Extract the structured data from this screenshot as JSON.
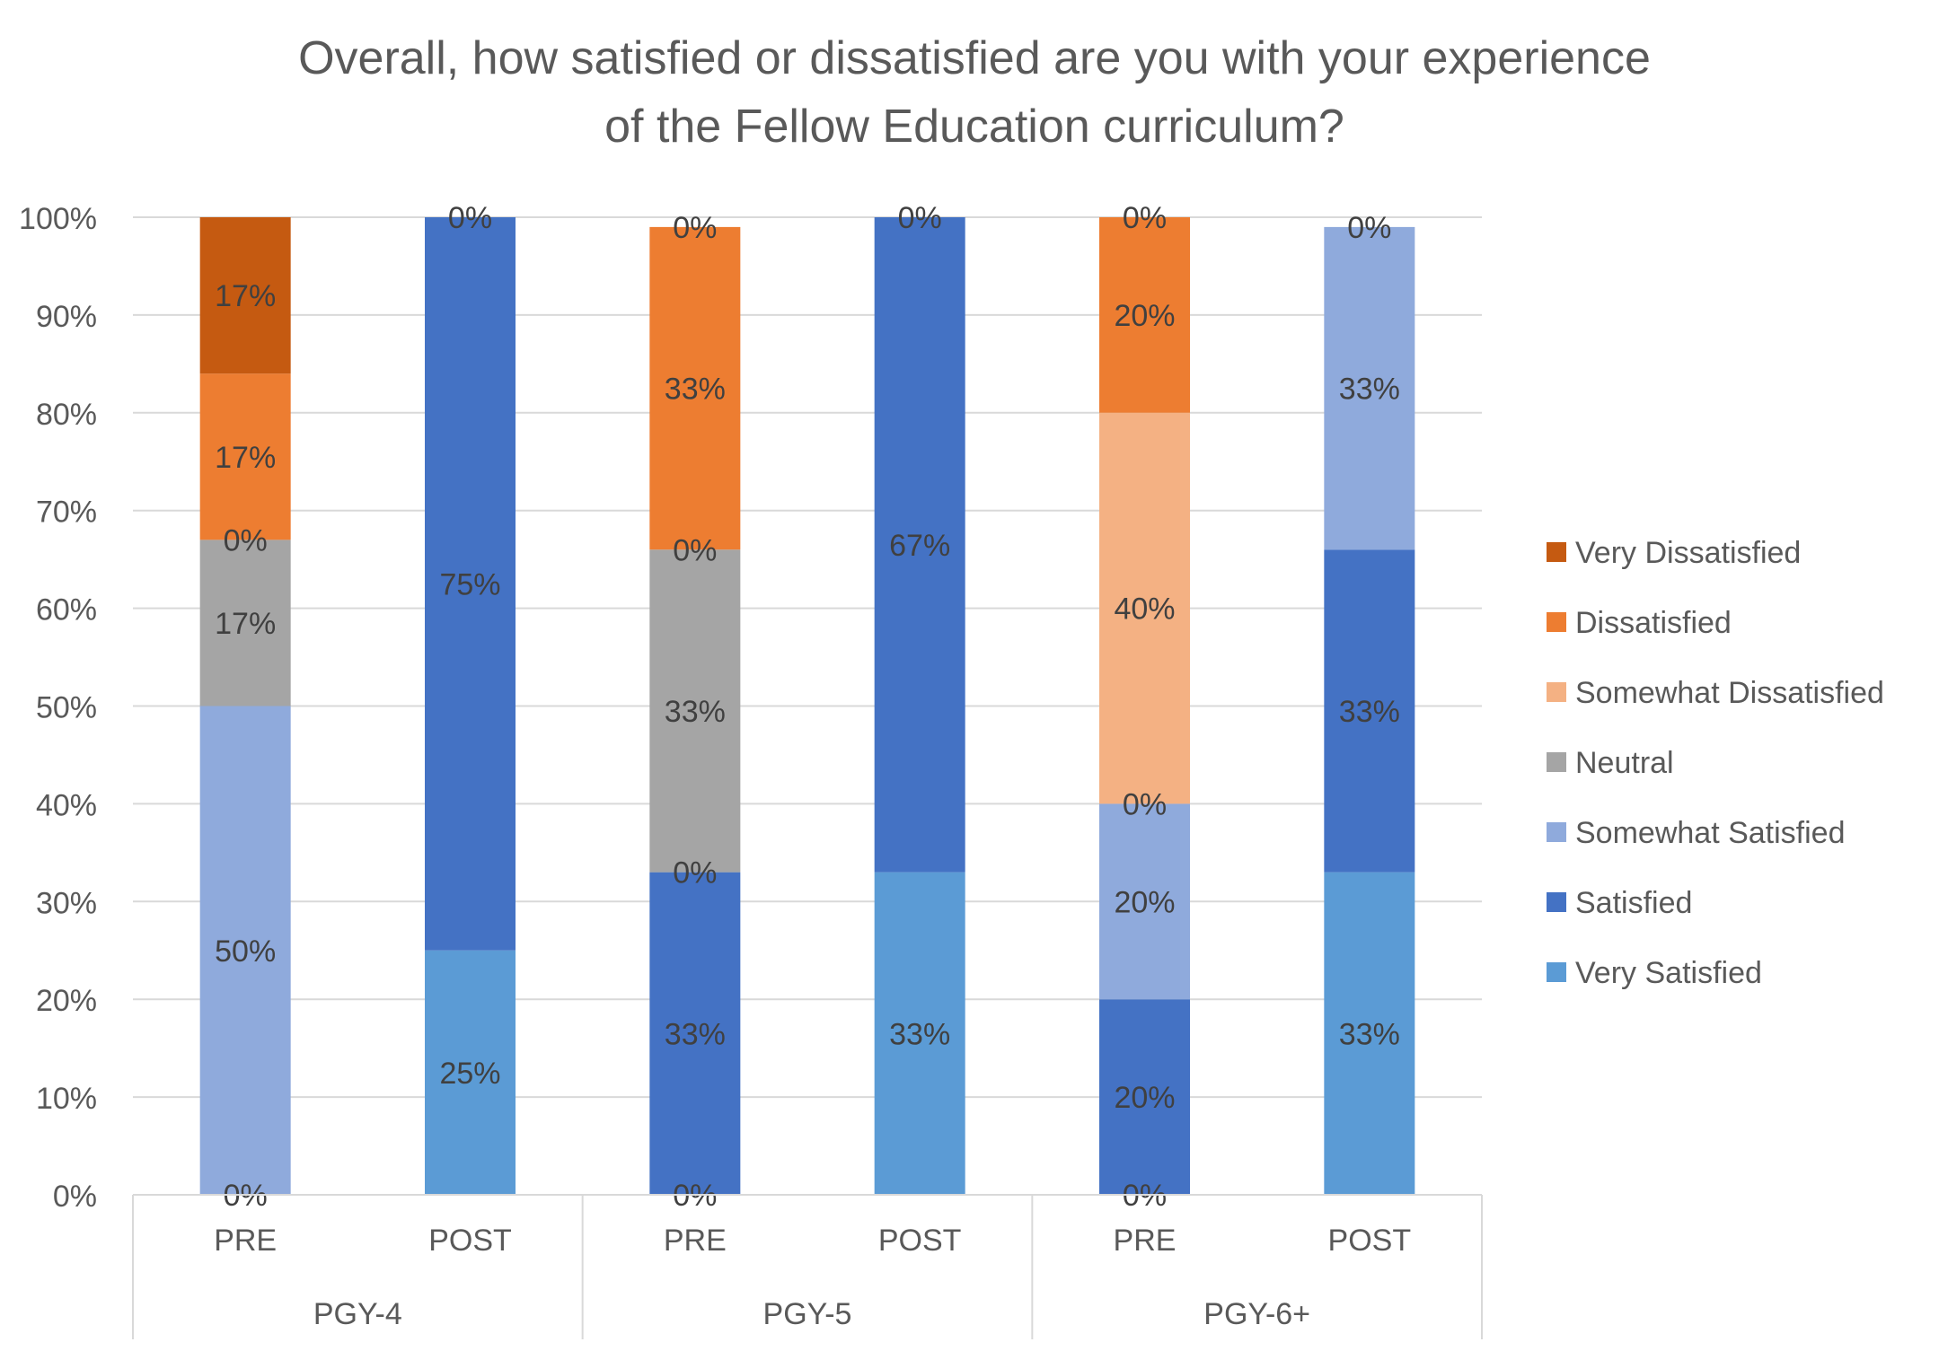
{
  "chart_data": {
    "type": "bar",
    "stacked": true,
    "percent": true,
    "title_lines": [
      "Overall, how satisfied or dissatisfied are you with your experience",
      "of the Fellow Education curriculum?"
    ],
    "groups": [
      "PGY-4",
      "PGY-5",
      "PGY-6+"
    ],
    "categories": [
      "PRE",
      "POST",
      "PRE",
      "POST",
      "PRE",
      "POST"
    ],
    "y_ticks": [
      "0%",
      "10%",
      "20%",
      "30%",
      "40%",
      "50%",
      "60%",
      "70%",
      "80%",
      "90%",
      "100%"
    ],
    "ylim": [
      0,
      100
    ],
    "grid": true,
    "legend_position": "right",
    "series": [
      {
        "name": "Very Satisfied",
        "color": "#5B9BD5",
        "values": [
          0,
          25,
          0,
          33,
          0,
          33
        ],
        "labels": [
          "0%",
          "25%",
          "0%",
          "33%",
          "0%",
          "33%"
        ]
      },
      {
        "name": "Satisfied",
        "color": "#4472C4",
        "values": [
          0,
          75,
          33,
          67,
          20,
          33
        ],
        "labels": [
          "",
          "75%",
          "33%",
          "67%",
          "20%",
          "33%"
        ]
      },
      {
        "name": "Somewhat Satisfied",
        "color": "#8FAADC",
        "values": [
          50,
          0,
          0,
          0,
          20,
          33
        ],
        "labels": [
          "50%",
          "",
          "0%",
          "",
          "20%",
          "33%"
        ]
      },
      {
        "name": "Neutral",
        "color": "#A5A5A5",
        "values": [
          17,
          0,
          33,
          0,
          0,
          0
        ],
        "labels": [
          "17%",
          "",
          "33%",
          "",
          "0%",
          ""
        ]
      },
      {
        "name": "Somewhat Dissatisfied",
        "color": "#F4B183",
        "values": [
          0,
          0,
          0,
          0,
          40,
          0
        ],
        "labels": [
          "0%",
          "",
          "0%",
          "",
          "40%",
          ""
        ]
      },
      {
        "name": "Dissatisfied",
        "color": "#ED7D31",
        "values": [
          17,
          0,
          33,
          0,
          20,
          0
        ],
        "labels": [
          "17%",
          "",
          "33%",
          "",
          "20%",
          ""
        ]
      },
      {
        "name": "Very Dissatisfied",
        "color": "#C55A11",
        "values": [
          17,
          0,
          0,
          0,
          0,
          0
        ],
        "labels": [
          "17%",
          "0%",
          "0%",
          "0%",
          "0%",
          "0%"
        ]
      }
    ]
  }
}
